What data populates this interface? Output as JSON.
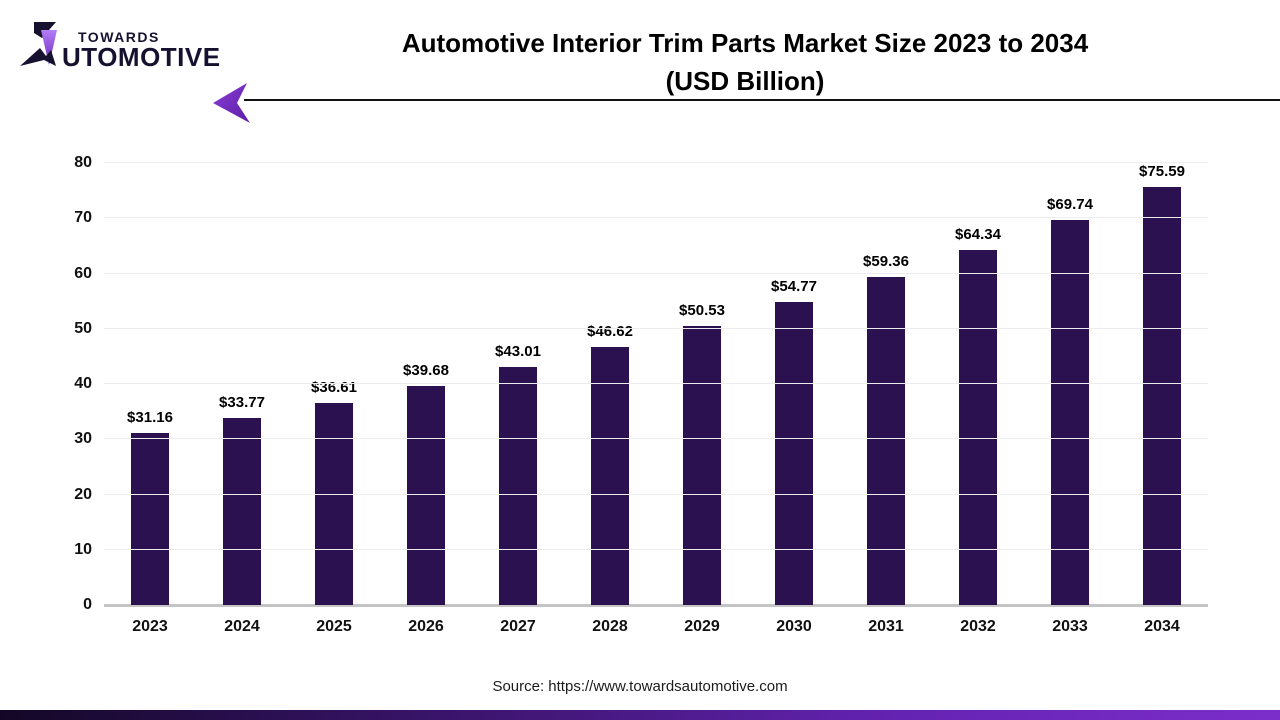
{
  "logo": {
    "towards": "TOWARDS",
    "utomotive": "UTOMOTIVE",
    "mark_colors": {
      "dark": "#171130",
      "purple_top": "#a56cf5",
      "purple_bottom": "#6a25b8"
    }
  },
  "header": {
    "title_line1": "Automotive Interior Trim Parts Market Size 2023 to 2034",
    "title_line2": "(USD Billion)"
  },
  "source": "Source: https://www.towardsautomotive.com",
  "colors": {
    "bar": "#2c1150",
    "gridline": "#ececec",
    "axis_line": "#c4c4c4",
    "accent_purple": "#7c2ecb"
  },
  "chart_data": {
    "type": "bar",
    "title": "Automotive Interior Trim Parts Market Size 2023 to 2034 (USD Billion)",
    "xlabel": "",
    "ylabel": "",
    "categories": [
      "2023",
      "2024",
      "2025",
      "2026",
      "2027",
      "2028",
      "2029",
      "2030",
      "2031",
      "2032",
      "2033",
      "2034"
    ],
    "values": [
      31.16,
      33.77,
      36.61,
      39.68,
      43.01,
      46.62,
      50.53,
      54.77,
      59.36,
      64.34,
      69.74,
      75.59
    ],
    "value_labels": [
      "$31.16",
      "$33.77",
      "$36.61",
      "$39.68",
      "$43.01",
      "$46.62",
      "$50.53",
      "$54.77",
      "$59.36",
      "$64.34",
      "$69.74",
      "$75.59"
    ],
    "yticks": [
      0,
      10,
      20,
      30,
      40,
      50,
      60,
      70,
      80
    ],
    "ylim": [
      0,
      80
    ],
    "grid": true,
    "legend": false
  }
}
